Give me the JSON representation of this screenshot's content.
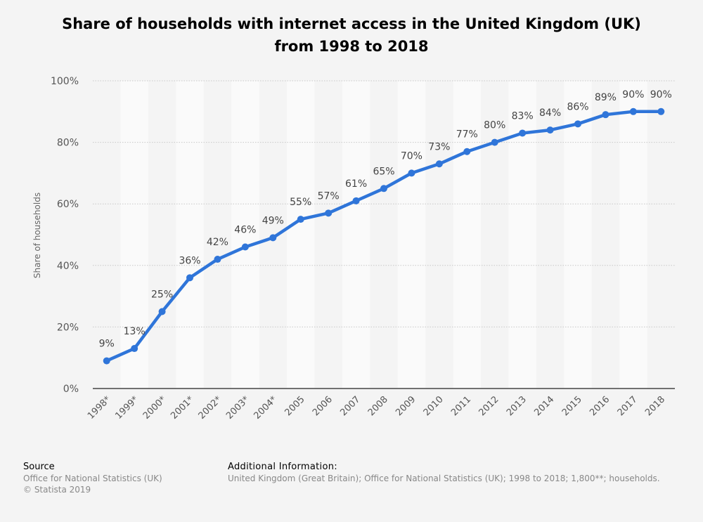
{
  "chart_data": {
    "type": "line",
    "title": "Share of households with internet access in the United Kingdom (UK) from 1998 to 2018",
    "title_lines": [
      "Share of households with internet access in the United Kingdom (UK)",
      "from 1998 to 2018"
    ],
    "xlabel": "",
    "ylabel": "Share of households",
    "categories": [
      "1998*",
      "1999*",
      "2000*",
      "2001*",
      "2002*",
      "2003*",
      "2004*",
      "2005",
      "2006",
      "2007",
      "2008",
      "2009",
      "2010",
      "2011",
      "2012",
      "2013",
      "2014",
      "2015",
      "2016",
      "2017",
      "2018"
    ],
    "values": [
      9,
      13,
      25,
      36,
      42,
      46,
      49,
      55,
      57,
      61,
      65,
      70,
      73,
      77,
      80,
      83,
      84,
      86,
      89,
      90,
      90
    ],
    "data_labels": [
      "9%",
      "13%",
      "25%",
      "36%",
      "42%",
      "46%",
      "49%",
      "55%",
      "57%",
      "61%",
      "65%",
      "70%",
      "73%",
      "77%",
      "80%",
      "83%",
      "84%",
      "86%",
      "89%",
      "90%",
      "90%"
    ],
    "ylim": [
      0,
      100
    ],
    "yticks": [
      0,
      20,
      40,
      60,
      80,
      100
    ],
    "ytick_labels": [
      "0%",
      "20%",
      "40%",
      "60%",
      "80%",
      "100%"
    ],
    "grid": true,
    "line_color": "#2f75d9",
    "legend": "none"
  },
  "footer": {
    "source_heading": "Source",
    "source_lines": [
      "Office for National Statistics (UK)",
      "© Statista 2019"
    ],
    "additional_heading": "Additional Information:",
    "additional_text": "United Kingdom (Great Britain); Office for National Statistics (UK); 1998 to 2018; 1,800**; households."
  }
}
